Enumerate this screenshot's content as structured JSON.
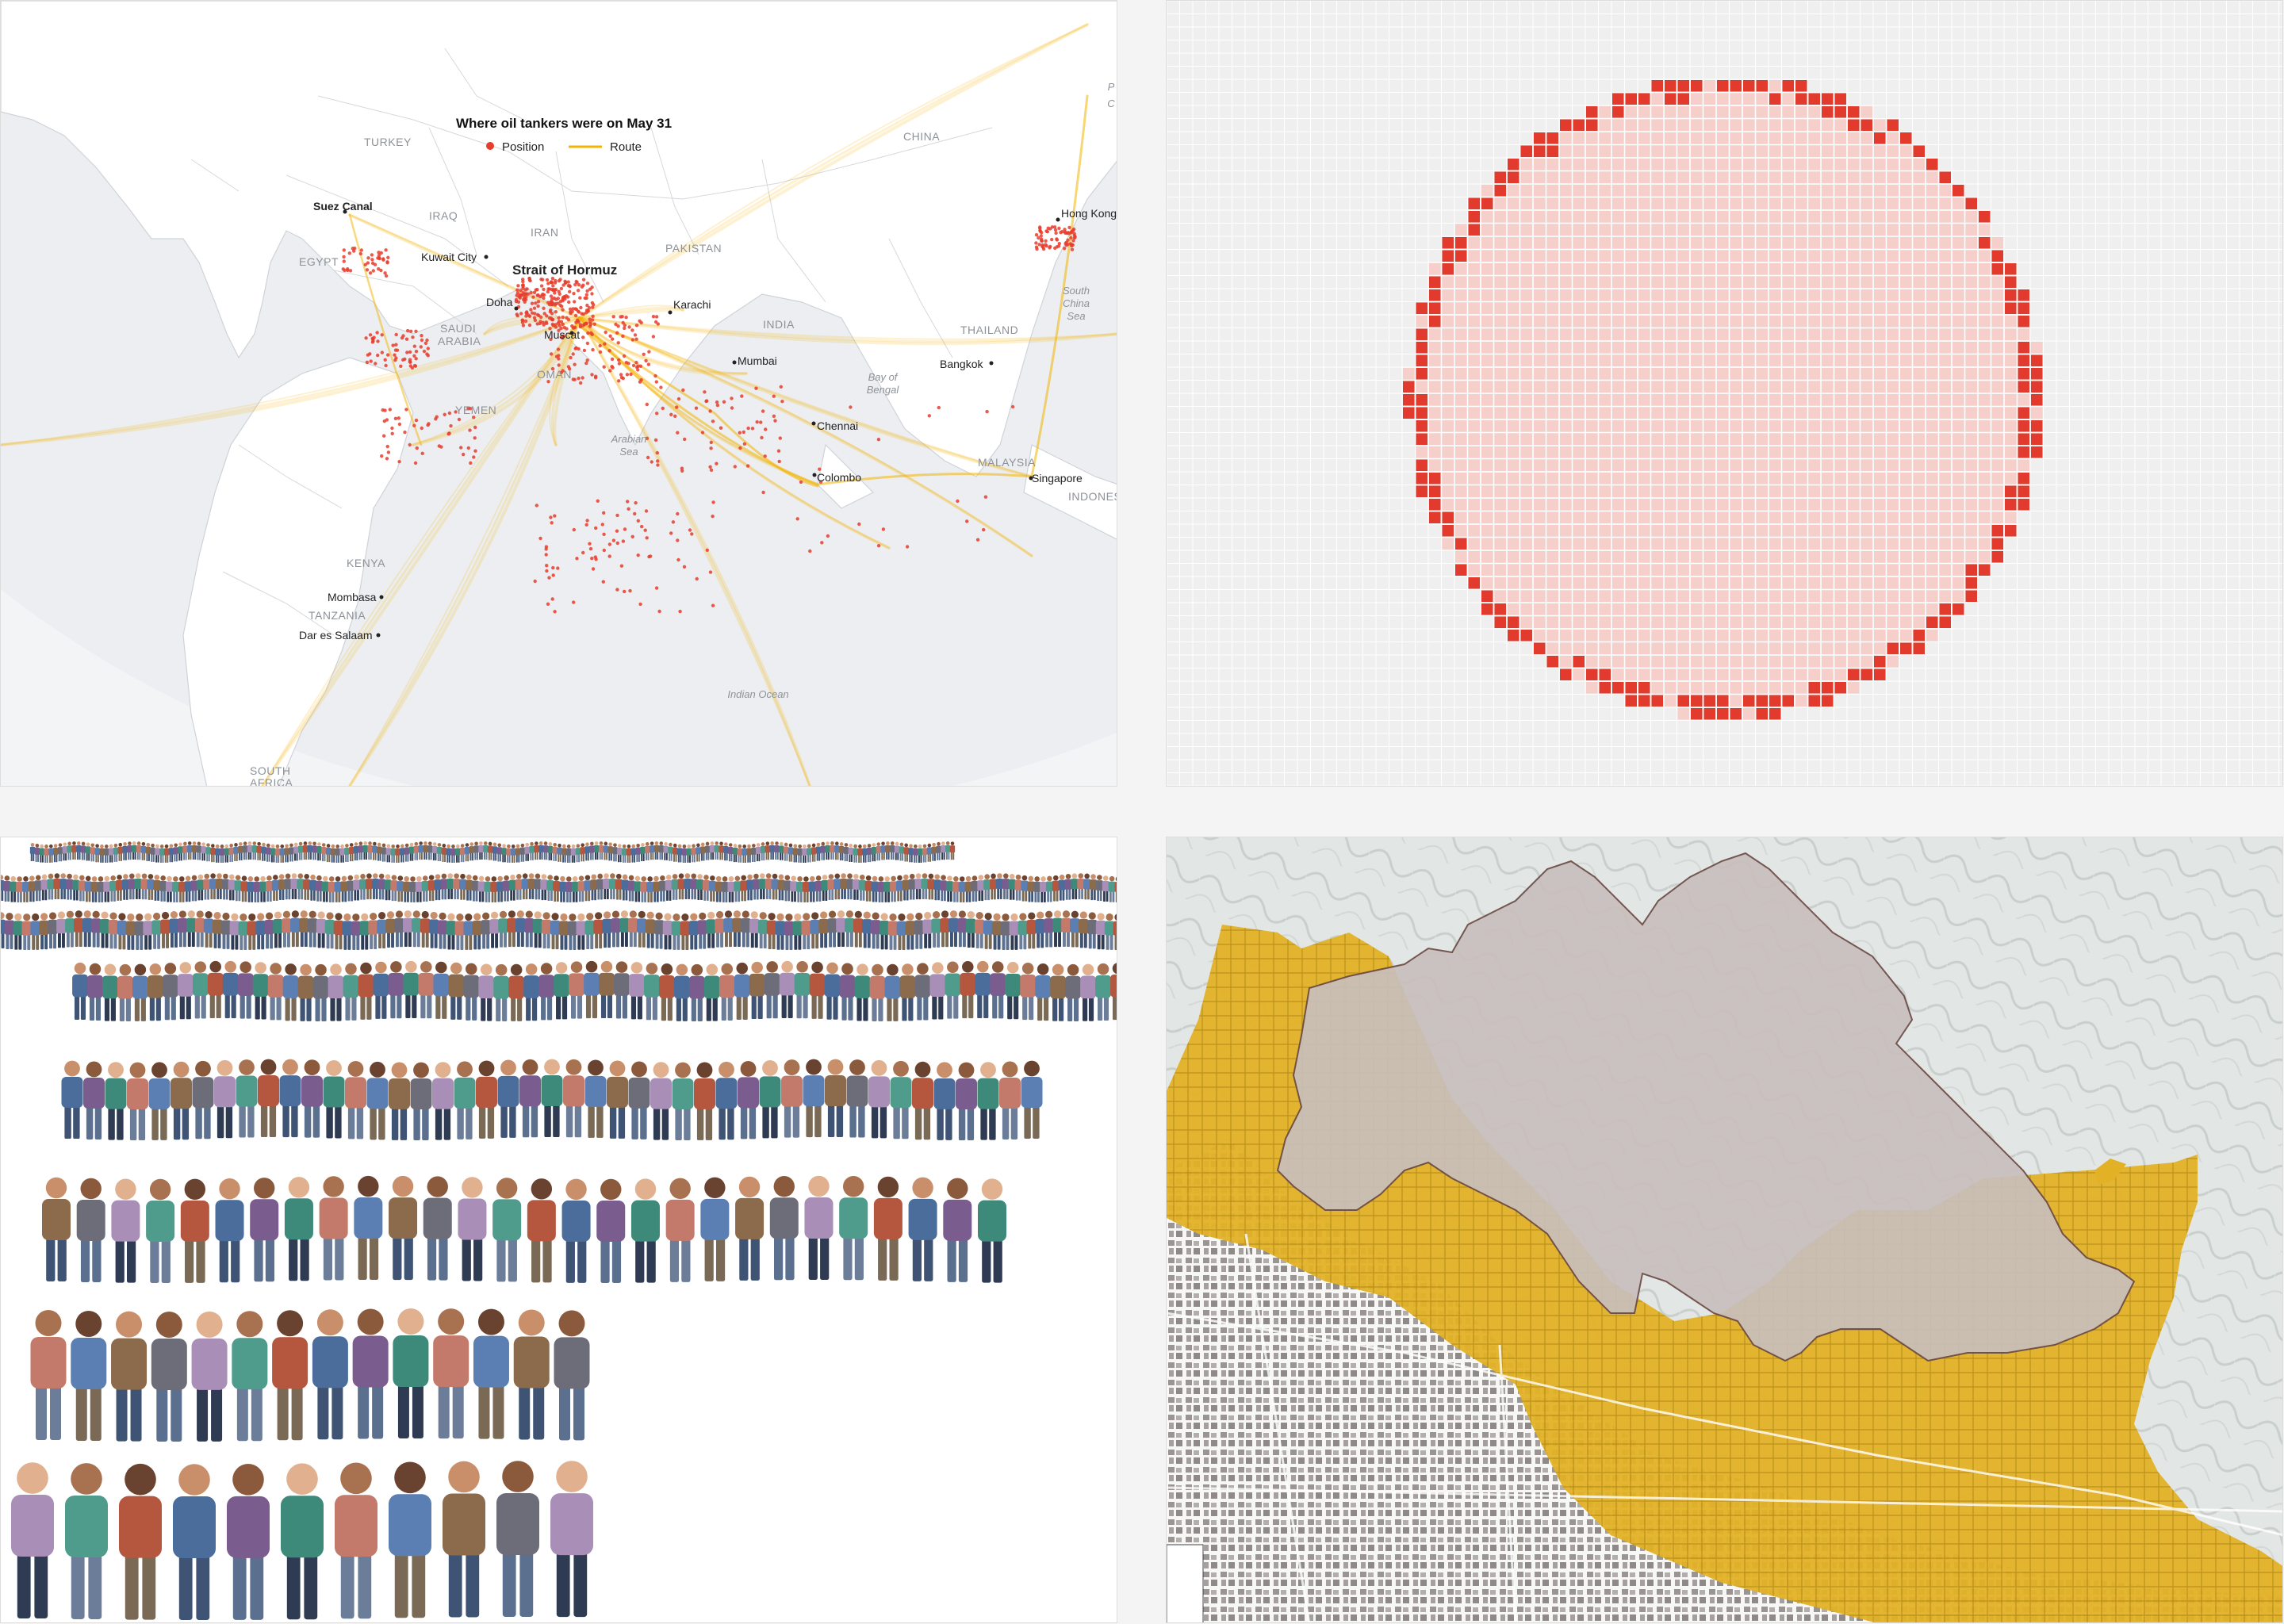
{
  "map_tankers": {
    "title": "Where oil tankers were on May 31",
    "legend": {
      "position": "Position",
      "route": "Route"
    },
    "colors": {
      "position": "#e83d2d",
      "route": "#f2b400",
      "land": "#ffffff",
      "sea": "#e9ebee",
      "border": "#cfd3d8"
    },
    "countries": [
      "TURKEY",
      "CHINA",
      "IRAQ",
      "IRAN",
      "EGYPT",
      "PAKISTAN",
      "SAUDI",
      "ARABIA",
      "INDIA",
      "OMAN",
      "THAILAND",
      "YEMEN",
      "MALAYSIA",
      "KENYA",
      "TANZANIA",
      "SOUTH",
      "AFRICA",
      "INDONES"
    ],
    "cities": [
      "Suez Canal",
      "Kuwait City",
      "Doha",
      "Muscat",
      "Karachi",
      "Mumbai",
      "Bangkok",
      "Hong Kong",
      "Chennai",
      "Colombo",
      "Singapore",
      "Mombasa",
      "Dar es Salaam"
    ],
    "seas": [
      "Bay of",
      "Bengal",
      "Arabian",
      "Sea",
      "South",
      "China",
      "Sea",
      "Indian Ocean",
      "P",
      "C"
    ],
    "highlight": "Strait of Hormuz"
  },
  "grid_chart": {
    "colors": {
      "edge": "#e23b2e",
      "fill": "#f6cfcb",
      "background": "#efefef",
      "gridline": "#ffffff"
    }
  },
  "queue_illustration": {
    "colors": [
      "#4a6d9c",
      "#7a5c8e",
      "#3e8a7a",
      "#c47a6a",
      "#5b7fb3",
      "#8b6b4b",
      "#6d6d7a",
      "#a98fb8",
      "#4f9b8c",
      "#b5573f"
    ]
  },
  "fire_map": {
    "colors": {
      "burn_area": "#c9bfbd",
      "perimeter": "#6b4a45",
      "evacuation": "#e2b126",
      "terrain": "#dfe3e1",
      "streets": "#f7f7f5"
    }
  }
}
